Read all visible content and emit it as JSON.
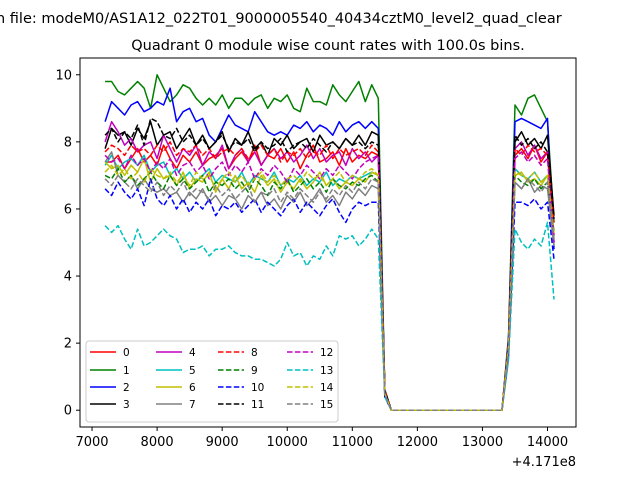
{
  "suptitle": "n file: modeM0/AS1A12_022T01_9000005540_40434cztM0_level2_quad_clear",
  "chart_data": {
    "type": "line",
    "title": "Quadrant 0 module wise count rates with 100.0s bins.",
    "xlabel": "",
    "ylabel": "",
    "x_offset_text": "+4.171e8",
    "xlim": [
      6815,
      14438
    ],
    "ylim": [
      -0.5,
      10.5
    ],
    "xticks": [
      7000,
      8000,
      9000,
      10000,
      11000,
      12000,
      13000,
      14000
    ],
    "xtick_labels": [
      "7000",
      "8000",
      "9000",
      "10000",
      "11000",
      "12000",
      "13000",
      "14000"
    ],
    "yticks": [
      0,
      2,
      4,
      6,
      8,
      10
    ],
    "ytick_labels": [
      "0",
      "2",
      "4",
      "6",
      "8",
      "10"
    ],
    "grid": false,
    "legend": {
      "placement": "lower-left",
      "columns": 4
    },
    "x": [
      7200,
      7300,
      7400,
      7500,
      7600,
      7700,
      7800,
      7900,
      8000,
      8100,
      8200,
      8300,
      8400,
      8500,
      8600,
      8700,
      8800,
      8900,
      9000,
      9100,
      9200,
      9300,
      9400,
      9500,
      9600,
      9700,
      9800,
      9900,
      10000,
      10100,
      10200,
      10300,
      10400,
      10500,
      10600,
      10700,
      10800,
      10900,
      11000,
      11100,
      11200,
      11300,
      11400,
      11500,
      11600,
      11700,
      11800,
      11900,
      12000,
      12100,
      12200,
      12300,
      12400,
      12500,
      12600,
      12700,
      12800,
      12900,
      13000,
      13100,
      13200,
      13300,
      13400,
      13500,
      13600,
      13700,
      13800,
      13900,
      14000,
      14100
    ],
    "series": [
      {
        "name": "0",
        "color": "#ff0000",
        "dashed": false,
        "values": [
          7.4,
          7.4,
          7.6,
          7.2,
          7.5,
          7.8,
          7.4,
          7.6,
          7.3,
          7.9,
          7.5,
          7.2,
          7.6,
          7.4,
          7.7,
          7.3,
          7.5,
          7.6,
          7.8,
          7.2,
          7.5,
          7.7,
          7.4,
          7.9,
          7.3,
          7.6,
          7.5,
          7.8,
          7.4,
          7.7,
          7.2,
          7.6,
          7.9,
          7.4,
          7.5,
          7.7,
          7.3,
          7.8,
          7.4,
          7.6,
          7.5,
          7.7,
          7.6,
          0.5,
          0,
          0,
          0,
          0,
          0,
          0,
          0,
          0,
          0,
          0,
          0,
          0,
          0,
          0,
          0,
          0,
          0,
          0,
          1.9,
          7.6,
          7.8,
          7.5,
          7.9,
          7.4,
          7.7,
          5.0
        ]
      },
      {
        "name": "1",
        "color": "#008000",
        "dashed": false,
        "values": [
          9.8,
          9.8,
          9.5,
          9.4,
          9.6,
          9.8,
          9.6,
          9.0,
          10.0,
          9.6,
          9.2,
          9.4,
          9.7,
          9.6,
          9.3,
          9.1,
          9.3,
          9.1,
          9.4,
          9.0,
          9.3,
          9.3,
          9.1,
          9.3,
          9.4,
          9.0,
          9.3,
          9.2,
          9.4,
          9.0,
          8.9,
          9.6,
          9.2,
          9.2,
          9.1,
          9.7,
          9.4,
          9.2,
          9.5,
          9.8,
          9.2,
          9.7,
          9.3,
          0.6,
          0,
          0,
          0,
          0,
          0,
          0,
          0,
          0,
          0,
          0,
          0,
          0,
          0,
          0,
          0,
          0,
          0,
          0,
          2.2,
          9.1,
          8.8,
          9.3,
          9.4,
          9.0,
          8.6,
          5.6
        ]
      },
      {
        "name": "2",
        "color": "#0000ff",
        "dashed": false,
        "values": [
          8.6,
          9.2,
          9.0,
          8.8,
          9.1,
          9.2,
          8.9,
          9.0,
          9.2,
          9.1,
          9.6,
          8.6,
          8.9,
          9.0,
          8.6,
          8.7,
          8.2,
          8.0,
          8.4,
          8.8,
          8.5,
          8.4,
          8.3,
          8.9,
          8.6,
          8.3,
          8.2,
          8.3,
          8.2,
          8.5,
          8.4,
          8.6,
          8.3,
          8.5,
          8.4,
          8.2,
          8.6,
          8.3,
          8.5,
          8.6,
          8.4,
          8.6,
          8.4,
          0.6,
          0,
          0,
          0,
          0,
          0,
          0,
          0,
          0,
          0,
          0,
          0,
          0,
          0,
          0,
          0,
          0,
          0,
          0,
          2.1,
          8.6,
          8.7,
          8.6,
          8.5,
          8.4,
          8.7,
          4.8
        ]
      },
      {
        "name": "3",
        "color": "#000000",
        "dashed": false,
        "values": [
          7.8,
          8.4,
          8.2,
          8.3,
          7.9,
          8.4,
          8.1,
          8.6,
          7.9,
          8.2,
          8.3,
          7.8,
          8.1,
          8.4,
          7.9,
          8.2,
          7.8,
          8.0,
          8.3,
          7.7,
          8.1,
          7.9,
          8.3,
          7.8,
          8.0,
          7.6,
          8.1,
          7.9,
          8.2,
          7.8,
          8.0,
          8.1,
          7.7,
          8.2,
          7.9,
          8.0,
          7.8,
          8.1,
          7.9,
          8.2,
          7.9,
          8.3,
          8.2,
          0.6,
          0,
          0,
          0,
          0,
          0,
          0,
          0,
          0,
          0,
          0,
          0,
          0,
          0,
          0,
          0,
          0,
          0,
          0,
          2.0,
          8.0,
          8.3,
          7.9,
          8.1,
          7.8,
          8.2,
          5.8
        ]
      },
      {
        "name": "4",
        "color": "#bf00bf",
        "dashed": false,
        "values": [
          8.0,
          8.6,
          8.3,
          7.9,
          8.1,
          7.7,
          7.9,
          8.0,
          7.5,
          8.2,
          7.8,
          7.4,
          7.8,
          7.6,
          7.9,
          7.3,
          7.7,
          7.5,
          7.9,
          7.2,
          7.6,
          7.8,
          7.4,
          7.7,
          7.3,
          7.6,
          7.8,
          7.5,
          7.7,
          7.4,
          7.6,
          7.9,
          7.5,
          7.8,
          7.4,
          7.6,
          7.7,
          7.3,
          7.8,
          7.5,
          7.7,
          7.4,
          7.6,
          0.5,
          0,
          0,
          0,
          0,
          0,
          0,
          0,
          0,
          0,
          0,
          0,
          0,
          0,
          0,
          0,
          0,
          0,
          0,
          2.0,
          7.8,
          8.0,
          7.6,
          7.9,
          7.5,
          7.7,
          5.2
        ]
      },
      {
        "name": "5",
        "color": "#00bfbf",
        "dashed": false,
        "values": [
          7.3,
          7.6,
          7.2,
          7.4,
          7.5,
          7.3,
          7.6,
          7.1,
          7.3,
          7.4,
          7.0,
          7.2,
          6.9,
          7.1,
          6.8,
          7.0,
          7.2,
          6.8,
          7.0,
          6.9,
          6.8,
          7.1,
          6.7,
          7.0,
          6.9,
          6.8,
          7.1,
          6.7,
          6.9,
          6.8,
          7.0,
          6.7,
          6.9,
          6.8,
          7.1,
          6.7,
          6.9,
          6.8,
          7.0,
          6.9,
          7.0,
          7.1,
          7.0,
          0.5,
          0,
          0,
          0,
          0,
          0,
          0,
          0,
          0,
          0,
          0,
          0,
          0,
          0,
          0,
          0,
          0,
          0,
          0,
          1.9,
          7.2,
          7.0,
          6.9,
          7.1,
          6.8,
          7.0,
          4.9
        ]
      },
      {
        "name": "6",
        "color": "#bfbf00",
        "dashed": false,
        "values": [
          7.4,
          7.2,
          7.3,
          7.0,
          7.3,
          7.1,
          7.5,
          6.8,
          7.2,
          6.9,
          7.0,
          6.7,
          7.1,
          6.6,
          6.9,
          6.8,
          7.1,
          6.5,
          6.9,
          6.6,
          7.0,
          6.6,
          6.8,
          6.5,
          7.0,
          6.7,
          6.9,
          6.5,
          6.8,
          6.6,
          6.9,
          6.6,
          6.8,
          7.1,
          6.7,
          6.9,
          6.6,
          6.8,
          6.7,
          6.9,
          6.8,
          7.1,
          7.0,
          0.5,
          0,
          0,
          0,
          0,
          0,
          0,
          0,
          0,
          0,
          0,
          0,
          0,
          0,
          0,
          0,
          0,
          0,
          0,
          1.9,
          7.0,
          7.1,
          6.8,
          6.9,
          6.7,
          7.0,
          5.3
        ]
      },
      {
        "name": "7",
        "color": "#808080",
        "dashed": false,
        "values": [
          7.4,
          7.7,
          7.0,
          6.8,
          7.0,
          6.6,
          6.9,
          6.6,
          6.5,
          6.6,
          6.4,
          6.5,
          6.2,
          6.5,
          6.3,
          6.6,
          6.2,
          6.4,
          6.1,
          6.4,
          6.3,
          6.0,
          6.4,
          6.2,
          6.5,
          6.1,
          6.3,
          6.0,
          6.4,
          6.2,
          6.5,
          6.1,
          6.3,
          6.6,
          6.2,
          6.4,
          6.1,
          6.5,
          6.3,
          6.6,
          6.4,
          6.7,
          6.6,
          0.5,
          0,
          0,
          0,
          0,
          0,
          0,
          0,
          0,
          0,
          0,
          0,
          0,
          0,
          0,
          0,
          0,
          0,
          0,
          1.7,
          6.8,
          6.6,
          6.9,
          6.5,
          6.7,
          6.6,
          4.9
        ]
      },
      {
        "name": "8",
        "color": "#ff0000",
        "dashed": true,
        "values": [
          7.7,
          7.9,
          7.8,
          7.6,
          7.9,
          7.7,
          7.8,
          7.6,
          7.9,
          7.7,
          8.0,
          7.6,
          7.8,
          7.7,
          7.9,
          7.6,
          7.8,
          7.5,
          7.7,
          7.8,
          7.6,
          7.8,
          7.5,
          7.7,
          7.9,
          7.6,
          7.8,
          7.4,
          7.7,
          7.6,
          7.8,
          7.5,
          7.7,
          7.6,
          7.9,
          7.5,
          7.8,
          7.6,
          7.7,
          7.8,
          7.6,
          7.9,
          7.7,
          0.6,
          0,
          0,
          0,
          0,
          0,
          0,
          0,
          0,
          0,
          0,
          0,
          0,
          0,
          0,
          0,
          0,
          0,
          0,
          2.0,
          7.8,
          7.6,
          7.9,
          7.7,
          7.8,
          7.6,
          5.6
        ]
      },
      {
        "name": "9",
        "color": "#008000",
        "dashed": true,
        "values": [
          7.0,
          6.9,
          7.2,
          6.8,
          7.0,
          6.7,
          6.9,
          7.1,
          6.8,
          6.6,
          7.0,
          6.7,
          6.9,
          6.6,
          6.8,
          7.0,
          6.5,
          6.8,
          6.7,
          6.9,
          6.6,
          6.8,
          6.5,
          6.9,
          6.7,
          6.4,
          6.8,
          6.6,
          6.9,
          6.5,
          6.7,
          6.9,
          6.6,
          6.8,
          6.5,
          6.9,
          6.7,
          6.6,
          6.8,
          6.7,
          6.9,
          7.0,
          6.8,
          0.5,
          0,
          0,
          0,
          0,
          0,
          0,
          0,
          0,
          0,
          0,
          0,
          0,
          0,
          0,
          0,
          0,
          0,
          0,
          1.8,
          7.0,
          6.8,
          6.7,
          6.9,
          6.6,
          6.8,
          5.3
        ]
      },
      {
        "name": "10",
        "color": "#0000ff",
        "dashed": true,
        "values": [
          6.6,
          6.4,
          6.8,
          6.5,
          6.3,
          6.6,
          6.1,
          6.9,
          6.3,
          6.1,
          6.4,
          6.0,
          6.3,
          5.9,
          6.2,
          6.0,
          6.3,
          5.8,
          6.1,
          6.0,
          6.2,
          5.9,
          6.1,
          6.3,
          5.9,
          6.2,
          6.0,
          5.8,
          6.1,
          6.3,
          5.9,
          6.2,
          6.0,
          5.8,
          6.1,
          6.3,
          5.9,
          5.6,
          6.0,
          6.2,
          6.1,
          6.2,
          6.2,
          0.4,
          0,
          0,
          0,
          0,
          0,
          0,
          0,
          0,
          0,
          0,
          0,
          0,
          0,
          0,
          0,
          0,
          0,
          0,
          1.6,
          6.2,
          6.2,
          6.1,
          6.3,
          6.0,
          6.2,
          4.5
        ]
      },
      {
        "name": "11",
        "color": "#000000",
        "dashed": true,
        "values": [
          8.2,
          8.4,
          8.0,
          8.3,
          8.1,
          8.5,
          7.9,
          8.7,
          8.6,
          8.2,
          8.1,
          8.4,
          8.0,
          8.2,
          7.9,
          8.1,
          7.8,
          8.0,
          8.2,
          7.8,
          8.0,
          7.9,
          8.1,
          7.7,
          8.0,
          7.8,
          7.9,
          8.1,
          7.7,
          7.9,
          8.0,
          7.8,
          8.1,
          7.9,
          7.7,
          8.0,
          7.8,
          8.1,
          7.9,
          8.0,
          7.8,
          8.0,
          7.9,
          0.6,
          0,
          0,
          0,
          0,
          0,
          0,
          0,
          0,
          0,
          0,
          0,
          0,
          0,
          0,
          0,
          0,
          0,
          0,
          2.0,
          8.2,
          7.9,
          8.1,
          7.8,
          8.0,
          7.7,
          5.7
        ]
      },
      {
        "name": "12",
        "color": "#bf00bf",
        "dashed": true,
        "values": [
          7.6,
          7.4,
          7.5,
          7.2,
          7.6,
          7.3,
          7.5,
          7.1,
          7.4,
          7.2,
          7.5,
          7.0,
          7.3,
          7.4,
          7.1,
          7.3,
          6.9,
          7.2,
          7.4,
          7.0,
          7.3,
          7.1,
          7.4,
          6.9,
          7.2,
          7.0,
          7.3,
          7.1,
          6.8,
          7.2,
          7.0,
          7.3,
          7.1,
          6.9,
          7.2,
          7.0,
          7.3,
          7.1,
          6.9,
          7.2,
          7.4,
          7.5,
          7.6,
          0.5,
          0,
          0,
          0,
          0,
          0,
          0,
          0,
          0,
          0,
          0,
          0,
          0,
          0,
          0,
          0,
          0,
          0,
          0,
          1.9,
          7.5,
          7.7,
          7.4,
          7.6,
          7.3,
          7.5,
          5.0
        ]
      },
      {
        "name": "13",
        "color": "#00bfbf",
        "dashed": true,
        "values": [
          5.5,
          5.3,
          5.5,
          5.1,
          4.8,
          5.4,
          4.9,
          5.0,
          5.2,
          5.4,
          5.2,
          5.1,
          4.7,
          4.8,
          4.8,
          4.9,
          4.6,
          4.8,
          4.8,
          4.9,
          4.7,
          4.6,
          4.6,
          4.5,
          4.5,
          4.4,
          4.3,
          4.5,
          5.0,
          4.6,
          4.7,
          4.3,
          4.6,
          4.5,
          4.9,
          4.6,
          5.2,
          5.1,
          5.2,
          4.9,
          5.1,
          5.4,
          5.1,
          0.4,
          0,
          0,
          0,
          0,
          0,
          0,
          0,
          0,
          0,
          0,
          0,
          0,
          0,
          0,
          0,
          0,
          0,
          0,
          1.5,
          5.4,
          5.0,
          4.8,
          5.1,
          4.9,
          5.6,
          3.3
        ]
      },
      {
        "name": "14",
        "color": "#bfbf00",
        "dashed": true,
        "values": [
          7.1,
          7.3,
          7.0,
          7.2,
          6.9,
          7.1,
          6.8,
          7.2,
          7.0,
          6.9,
          7.1,
          6.8,
          7.0,
          6.7,
          7.1,
          6.9,
          7.0,
          6.6,
          6.9,
          7.1,
          6.8,
          7.0,
          6.7,
          6.9,
          7.1,
          6.8,
          7.0,
          6.7,
          6.9,
          7.0,
          6.8,
          7.1,
          6.9,
          7.0,
          6.7,
          6.9,
          7.1,
          6.8,
          7.0,
          6.9,
          7.1,
          7.2,
          7.0,
          0.5,
          0,
          0,
          0,
          0,
          0,
          0,
          0,
          0,
          0,
          0,
          0,
          0,
          0,
          0,
          0,
          0,
          0,
          0,
          1.9,
          7.1,
          7.0,
          6.9,
          7.1,
          6.8,
          7.0,
          5.2
        ]
      },
      {
        "name": "15",
        "color": "#808080",
        "dashed": true,
        "values": [
          6.9,
          6.7,
          7.0,
          6.8,
          6.6,
          6.9,
          6.7,
          6.5,
          6.8,
          6.4,
          6.7,
          6.5,
          6.8,
          6.4,
          6.6,
          6.5,
          6.3,
          6.7,
          6.4,
          6.6,
          6.3,
          6.5,
          6.7,
          6.2,
          6.5,
          6.4,
          6.6,
          6.2,
          6.5,
          6.3,
          6.6,
          6.4,
          6.2,
          6.5,
          6.3,
          6.6,
          6.4,
          6.7,
          6.5,
          6.8,
          6.6,
          6.9,
          6.8,
          0.5,
          0,
          0,
          0,
          0,
          0,
          0,
          0,
          0,
          0,
          0,
          0,
          0,
          0,
          0,
          0,
          0,
          0,
          0,
          1.8,
          6.8,
          6.6,
          6.9,
          6.7,
          6.5,
          6.8,
          5.1
        ]
      }
    ]
  }
}
